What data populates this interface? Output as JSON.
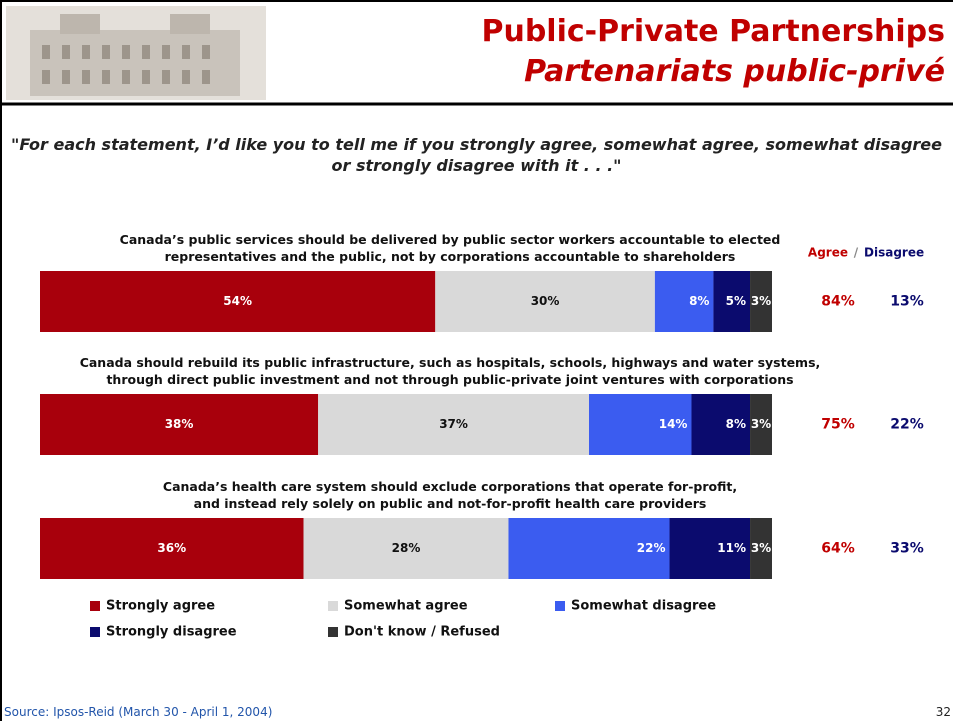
{
  "header": {
    "title": "Public-Private Partnerships",
    "subtitle": "Partenariats public-privé"
  },
  "question": "\"For each statement, I’d like you to tell me if you strongly agree, somewhat agree, somewhat disagree or strongly disagree with it . . .\"",
  "chart_data": {
    "type": "bar",
    "orientation": "horizontal",
    "stacked": true,
    "categories": [
      "Canada’s public services should be delivered by public sector workers accountable to elected\nrepresentatives and the public, not by corporations accountable to shareholders",
      "Canada should rebuild its public infrastructure, such as hospitals, schools, highways and water systems,\nthrough direct public investment and not through public-private joint ventures with corporations",
      "Canada’s health care system should exclude corporations that operate for-profit,\nand instead rely solely on public and not-for-profit health care providers"
    ],
    "xlim": [
      0,
      100
    ],
    "series": [
      {
        "name": "Strongly agree",
        "color": "#a8000c",
        "values": [
          54,
          38,
          36
        ],
        "value_labels": [
          "54%",
          "38%",
          "36%"
        ]
      },
      {
        "name": "Somewhat agree",
        "color": "#d9d9d9",
        "values": [
          30,
          37,
          28
        ],
        "value_labels": [
          "30%",
          "37%",
          "28%"
        ]
      },
      {
        "name": "Somewhat disagree",
        "color": "#3b5cf0",
        "values": [
          8,
          14,
          22
        ],
        "value_labels": [
          "8%",
          "14%",
          "22%"
        ]
      },
      {
        "name": "Strongly disagree",
        "color": "#0b0b6e",
        "values": [
          5,
          8,
          11
        ],
        "value_labels": [
          "5%",
          "8%",
          "11%"
        ]
      },
      {
        "name": "Don't know / Refused",
        "color": "#333333",
        "values": [
          3,
          3,
          3
        ],
        "value_labels": [
          "3%",
          "3%",
          "3%"
        ]
      }
    ],
    "summary": {
      "agree_label": "Agree",
      "separator": "/",
      "disagree_label": "Disagree",
      "agree": [
        "84%",
        "75%",
        "64%"
      ],
      "disagree": [
        "13%",
        "22%",
        "33%"
      ]
    }
  },
  "source": "Source: Ipsos-Reid (March 30 - April 1, 2004)",
  "page_number": "32"
}
